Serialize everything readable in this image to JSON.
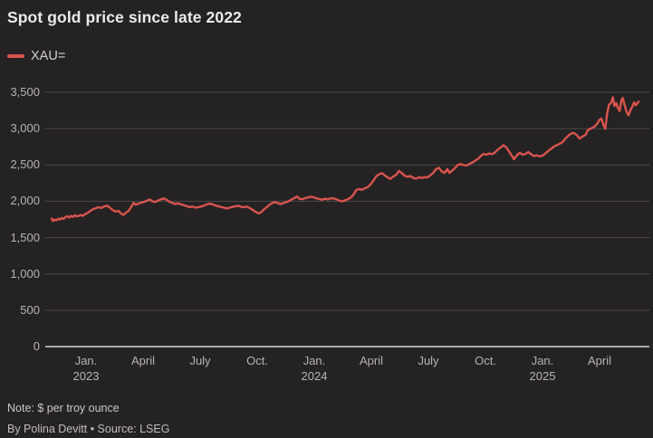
{
  "title": "Spot gold price since late 2022",
  "legend": {
    "label": "XAU="
  },
  "note": "Note: $ per troy ounce",
  "byline": "By Polina Devitt • Source: LSEG",
  "colors": {
    "background": "#252223",
    "accent_line": "#d9544d",
    "grid": "#4d4a4a",
    "axis": "#d9d7d7",
    "title_text": "#eceaea",
    "tick_text": "#b6b3b3"
  },
  "chart_data": {
    "type": "line",
    "title": "Spot gold price since late 2022",
    "unit": "$ per troy ounce",
    "source": "LSEG",
    "xlabel": "",
    "ylabel": "",
    "ylim": [
      0,
      3500
    ],
    "grid": "horizontal",
    "legend_position": "top-left",
    "x_range_note": "months: 0 = Jan 2023 tick; data runs early Nov 2022 to mid June 2025",
    "y_ticks": [
      {
        "value": 3500,
        "label": "3,500"
      },
      {
        "value": 3000,
        "label": "3,000"
      },
      {
        "value": 2500,
        "label": "2,500"
      },
      {
        "value": 2000,
        "label": "2,000"
      },
      {
        "value": 1500,
        "label": "1,500"
      },
      {
        "value": 1000,
        "label": "1,000"
      },
      {
        "value": 500,
        "label": "500"
      },
      {
        "value": 0,
        "label": "0"
      }
    ],
    "x_ticks": [
      {
        "m": 0,
        "label": "Jan.",
        "year": "2023"
      },
      {
        "m": 3,
        "label": "April",
        "year": ""
      },
      {
        "m": 6,
        "label": "July",
        "year": ""
      },
      {
        "m": 9,
        "label": "Oct.",
        "year": ""
      },
      {
        "m": 12,
        "label": "Jan.",
        "year": "2024"
      },
      {
        "m": 15,
        "label": "April",
        "year": ""
      },
      {
        "m": 18,
        "label": "July",
        "year": ""
      },
      {
        "m": 21,
        "label": "Oct.",
        "year": ""
      },
      {
        "m": 24,
        "label": "Jan.",
        "year": "2025"
      },
      {
        "m": 27,
        "label": "April",
        "year": ""
      }
    ],
    "series": [
      {
        "name": "XAU=",
        "color": "#d9544d",
        "points": [
          [
            -1.81,
            1762
          ],
          [
            -1.74,
            1729
          ],
          [
            -1.65,
            1748
          ],
          [
            -1.56,
            1738
          ],
          [
            -1.47,
            1760
          ],
          [
            -1.38,
            1748
          ],
          [
            -1.28,
            1770
          ],
          [
            -1.18,
            1758
          ],
          [
            -1.08,
            1782
          ],
          [
            -0.98,
            1795
          ],
          [
            -0.88,
            1778
          ],
          [
            -0.78,
            1798
          ],
          [
            -0.68,
            1785
          ],
          [
            -0.58,
            1808
          ],
          [
            -0.48,
            1792
          ],
          [
            -0.38,
            1800
          ],
          [
            -0.28,
            1812
          ],
          [
            -0.18,
            1798
          ],
          [
            -0.08,
            1818
          ],
          [
            0.05,
            1835
          ],
          [
            0.2,
            1862
          ],
          [
            0.35,
            1888
          ],
          [
            0.5,
            1905
          ],
          [
            0.65,
            1918
          ],
          [
            0.8,
            1908
          ],
          [
            0.95,
            1928
          ],
          [
            1.1,
            1940
          ],
          [
            1.25,
            1912
          ],
          [
            1.4,
            1880
          ],
          [
            1.55,
            1858
          ],
          [
            1.7,
            1868
          ],
          [
            1.85,
            1830
          ],
          [
            1.97,
            1814
          ],
          [
            2.1,
            1842
          ],
          [
            2.25,
            1872
          ],
          [
            2.4,
            1935
          ],
          [
            2.5,
            1978
          ],
          [
            2.62,
            1952
          ],
          [
            2.75,
            1968
          ],
          [
            2.9,
            1982
          ],
          [
            3.05,
            1992
          ],
          [
            3.2,
            2008
          ],
          [
            3.35,
            2025
          ],
          [
            3.5,
            1998
          ],
          [
            3.65,
            1990
          ],
          [
            3.8,
            2012
          ],
          [
            3.95,
            2028
          ],
          [
            4.1,
            2042
          ],
          [
            4.25,
            2018
          ],
          [
            4.4,
            1992
          ],
          [
            4.55,
            1975
          ],
          [
            4.7,
            1962
          ],
          [
            4.85,
            1972
          ],
          [
            5.0,
            1958
          ],
          [
            5.15,
            1945
          ],
          [
            5.3,
            1932
          ],
          [
            5.45,
            1920
          ],
          [
            5.6,
            1928
          ],
          [
            5.75,
            1912
          ],
          [
            5.9,
            1918
          ],
          [
            6.05,
            1928
          ],
          [
            6.2,
            1942
          ],
          [
            6.35,
            1958
          ],
          [
            6.5,
            1968
          ],
          [
            6.65,
            1958
          ],
          [
            6.8,
            1942
          ],
          [
            6.95,
            1932
          ],
          [
            7.1,
            1922
          ],
          [
            7.25,
            1912
          ],
          [
            7.4,
            1902
          ],
          [
            7.55,
            1912
          ],
          [
            7.7,
            1922
          ],
          [
            7.85,
            1932
          ],
          [
            8.0,
            1938
          ],
          [
            8.15,
            1925
          ],
          [
            8.3,
            1918
          ],
          [
            8.45,
            1928
          ],
          [
            8.6,
            1908
          ],
          [
            8.75,
            1882
          ],
          [
            8.9,
            1858
          ],
          [
            9.05,
            1832
          ],
          [
            9.2,
            1848
          ],
          [
            9.35,
            1888
          ],
          [
            9.5,
            1918
          ],
          [
            9.65,
            1952
          ],
          [
            9.8,
            1978
          ],
          [
            9.95,
            1988
          ],
          [
            10.1,
            1972
          ],
          [
            10.25,
            1962
          ],
          [
            10.4,
            1978
          ],
          [
            10.55,
            1992
          ],
          [
            10.7,
            2008
          ],
          [
            10.85,
            2032
          ],
          [
            11.0,
            2052
          ],
          [
            11.1,
            2068
          ],
          [
            11.2,
            2038
          ],
          [
            11.35,
            2028
          ],
          [
            11.5,
            2042
          ],
          [
            11.65,
            2052
          ],
          [
            11.8,
            2062
          ],
          [
            11.95,
            2058
          ],
          [
            12.1,
            2042
          ],
          [
            12.25,
            2032
          ],
          [
            12.4,
            2022
          ],
          [
            12.55,
            2035
          ],
          [
            12.7,
            2028
          ],
          [
            12.85,
            2038
          ],
          [
            13.0,
            2042
          ],
          [
            13.15,
            2028
          ],
          [
            13.3,
            2012
          ],
          [
            13.45,
            1998
          ],
          [
            13.6,
            2012
          ],
          [
            13.75,
            2028
          ],
          [
            13.9,
            2048
          ],
          [
            14.05,
            2088
          ],
          [
            14.2,
            2152
          ],
          [
            14.35,
            2168
          ],
          [
            14.5,
            2158
          ],
          [
            14.65,
            2178
          ],
          [
            14.8,
            2195
          ],
          [
            14.95,
            2228
          ],
          [
            15.1,
            2282
          ],
          [
            15.25,
            2342
          ],
          [
            15.4,
            2372
          ],
          [
            15.55,
            2388
          ],
          [
            15.7,
            2358
          ],
          [
            15.85,
            2332
          ],
          [
            16.0,
            2308
          ],
          [
            16.15,
            2342
          ],
          [
            16.3,
            2362
          ],
          [
            16.45,
            2418
          ],
          [
            16.6,
            2388
          ],
          [
            16.75,
            2352
          ],
          [
            16.9,
            2338
          ],
          [
            17.05,
            2348
          ],
          [
            17.2,
            2322
          ],
          [
            17.35,
            2312
          ],
          [
            17.5,
            2332
          ],
          [
            17.65,
            2322
          ],
          [
            17.8,
            2332
          ],
          [
            17.95,
            2328
          ],
          [
            18.1,
            2358
          ],
          [
            18.25,
            2392
          ],
          [
            18.4,
            2442
          ],
          [
            18.55,
            2462
          ],
          [
            18.7,
            2412
          ],
          [
            18.85,
            2392
          ],
          [
            19.0,
            2442
          ],
          [
            19.1,
            2392
          ],
          [
            19.25,
            2422
          ],
          [
            19.4,
            2458
          ],
          [
            19.55,
            2502
          ],
          [
            19.7,
            2512
          ],
          [
            19.85,
            2498
          ],
          [
            20.0,
            2492
          ],
          [
            20.15,
            2512
          ],
          [
            20.3,
            2532
          ],
          [
            20.45,
            2558
          ],
          [
            20.6,
            2582
          ],
          [
            20.75,
            2622
          ],
          [
            20.9,
            2652
          ],
          [
            21.05,
            2642
          ],
          [
            21.2,
            2658
          ],
          [
            21.35,
            2648
          ],
          [
            21.5,
            2672
          ],
          [
            21.65,
            2712
          ],
          [
            21.8,
            2742
          ],
          [
            21.95,
            2772
          ],
          [
            22.1,
            2742
          ],
          [
            22.25,
            2682
          ],
          [
            22.4,
            2622
          ],
          [
            22.5,
            2578
          ],
          [
            22.65,
            2632
          ],
          [
            22.8,
            2668
          ],
          [
            22.95,
            2642
          ],
          [
            23.1,
            2652
          ],
          [
            23.25,
            2678
          ],
          [
            23.4,
            2648
          ],
          [
            23.55,
            2622
          ],
          [
            23.7,
            2632
          ],
          [
            23.85,
            2618
          ],
          [
            24.0,
            2628
          ],
          [
            24.15,
            2658
          ],
          [
            24.3,
            2692
          ],
          [
            24.45,
            2722
          ],
          [
            24.6,
            2752
          ],
          [
            24.75,
            2772
          ],
          [
            24.9,
            2792
          ],
          [
            25.05,
            2812
          ],
          [
            25.2,
            2862
          ],
          [
            25.35,
            2902
          ],
          [
            25.5,
            2932
          ],
          [
            25.65,
            2942
          ],
          [
            25.8,
            2912
          ],
          [
            25.95,
            2862
          ],
          [
            26.1,
            2892
          ],
          [
            26.25,
            2912
          ],
          [
            26.4,
            2982
          ],
          [
            26.55,
            3002
          ],
          [
            26.7,
            3022
          ],
          [
            26.85,
            3058
          ],
          [
            27.0,
            3122
          ],
          [
            27.1,
            3138
          ],
          [
            27.2,
            3052
          ],
          [
            27.3,
            2998
          ],
          [
            27.4,
            3212
          ],
          [
            27.5,
            3332
          ],
          [
            27.6,
            3352
          ],
          [
            27.7,
            3432
          ],
          [
            27.78,
            3312
          ],
          [
            27.88,
            3352
          ],
          [
            27.95,
            3292
          ],
          [
            28.05,
            3242
          ],
          [
            28.15,
            3392
          ],
          [
            28.22,
            3422
          ],
          [
            28.32,
            3322
          ],
          [
            28.42,
            3232
          ],
          [
            28.52,
            3182
          ],
          [
            28.62,
            3252
          ],
          [
            28.72,
            3302
          ],
          [
            28.82,
            3362
          ],
          [
            28.9,
            3322
          ],
          [
            29.0,
            3352
          ],
          [
            29.05,
            3372
          ]
        ]
      }
    ]
  }
}
